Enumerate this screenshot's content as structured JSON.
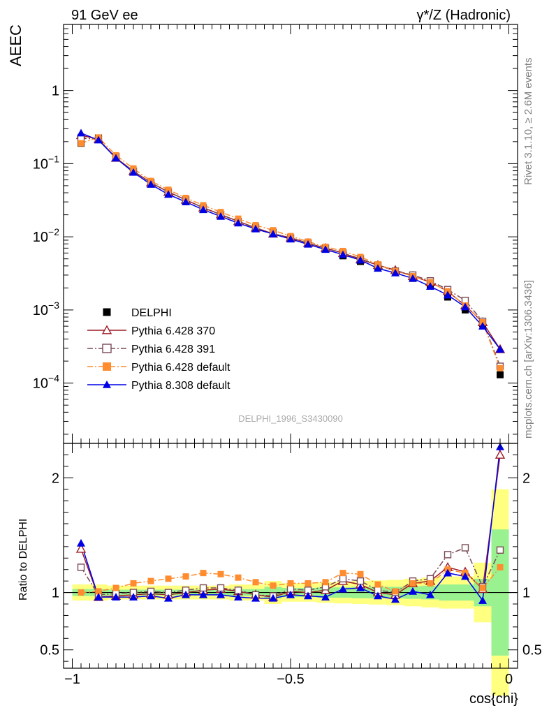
{
  "header": {
    "left_label": "91 GeV ee",
    "right_label": "γ*/Z (Hadronic)"
  },
  "side_labels": {
    "rivet": "Rivet 3.1.10, ≥ 2.6M events",
    "mcplots": "mcplots.cern.ch [arXiv:1306.3436]"
  },
  "watermark": "DELPHI_1996_S3430090",
  "chart_data": [
    {
      "type": "line",
      "panel": "main",
      "ylabel": "AEEC",
      "xlabel": "",
      "yscale": "log",
      "xlim": [
        -1.02,
        0.02
      ],
      "ylim": [
        1.5e-05,
        8
      ],
      "ytick_labels": [
        "1",
        "10^-1",
        "10^-2",
        "10^-3",
        "10^-4"
      ],
      "x": [
        -0.98,
        -0.94,
        -0.9,
        -0.86,
        -0.82,
        -0.78,
        -0.74,
        -0.7,
        -0.66,
        -0.62,
        -0.58,
        -0.54,
        -0.5,
        -0.46,
        -0.42,
        -0.38,
        -0.34,
        -0.3,
        -0.26,
        -0.22,
        -0.18,
        -0.14,
        -0.1,
        -0.06,
        -0.02
      ],
      "legend_position": "bottom-left",
      "series": [
        {
          "name": "DELPHI",
          "color": "#000000",
          "marker": "filled-square",
          "line": "none",
          "values": [
            0.19,
            0.225,
            0.125,
            0.079,
            0.054,
            0.04,
            0.031,
            0.024,
            0.0195,
            0.016,
            0.0135,
            0.0115,
            0.0095,
            0.0081,
            0.0068,
            0.0055,
            0.0046,
            0.0039,
            0.0034,
            0.0027,
            0.0022,
            0.0015,
            0.001,
            0.00065,
            0.00013
          ]
        },
        {
          "name": "Pythia 6.428 370",
          "color": "#9e1b26",
          "marker": "open-triangle",
          "line": "solid",
          "values": [
            0.245,
            0.215,
            0.12,
            0.079,
            0.055,
            0.041,
            0.032,
            0.025,
            0.0202,
            0.0163,
            0.0133,
            0.011,
            0.0097,
            0.0082,
            0.007,
            0.006,
            0.0049,
            0.0041,
            0.0035,
            0.0029,
            0.0024,
            0.0018,
            0.00115,
            0.00068,
            0.00029
          ]
        },
        {
          "name": "Pythia 6.428 391",
          "color": "#7a4a55",
          "marker": "open-square",
          "line": "dashdot",
          "values": [
            0.225,
            0.215,
            0.12,
            0.079,
            0.055,
            0.041,
            0.032,
            0.025,
            0.0201,
            0.0162,
            0.0132,
            0.011,
            0.0097,
            0.0082,
            0.007,
            0.006,
            0.005,
            0.0041,
            0.0034,
            0.003,
            0.0025,
            0.0019,
            0.00135,
            0.0007,
            0.00017
          ]
        },
        {
          "name": "Pythia 6.428 default",
          "color": "#ff8c2f",
          "marker": "filled-square",
          "line": "dashdot",
          "values": [
            0.19,
            0.228,
            0.13,
            0.086,
            0.058,
            0.044,
            0.034,
            0.027,
            0.0218,
            0.0177,
            0.0144,
            0.0123,
            0.0102,
            0.0086,
            0.0073,
            0.0064,
            0.0053,
            0.0042,
            0.0034,
            0.0029,
            0.0024,
            0.0018,
            0.00115,
            0.00068,
            0.00016
          ]
        },
        {
          "name": "Pythia 8.308 default",
          "color": "#0000e6",
          "marker": "filled-triangle",
          "line": "solid",
          "values": [
            0.262,
            0.21,
            0.119,
            0.076,
            0.052,
            0.038,
            0.03,
            0.0235,
            0.019,
            0.0154,
            0.0128,
            0.0109,
            0.0093,
            0.0079,
            0.0067,
            0.0057,
            0.0048,
            0.0037,
            0.0032,
            0.0027,
            0.0021,
            0.0016,
            0.0011,
            0.0006,
            0.00029
          ]
        }
      ]
    },
    {
      "type": "line",
      "panel": "ratio",
      "ylabel": "Ratio to DELPHI",
      "xlabel": "cos{chi}",
      "xlim": [
        -1.02,
        0.02
      ],
      "ylim": [
        0.34,
        2.3
      ],
      "yticks": [
        0.5,
        1,
        2
      ],
      "ytick_labels": [
        "0.5",
        "1",
        "2"
      ],
      "xticks": [
        -1,
        -0.5,
        0
      ],
      "xtick_labels": [
        "−1",
        "−0.5",
        "0"
      ],
      "x": [
        -0.98,
        -0.94,
        -0.9,
        -0.86,
        -0.82,
        -0.78,
        -0.74,
        -0.7,
        -0.66,
        -0.62,
        -0.58,
        -0.54,
        -0.5,
        -0.46,
        -0.42,
        -0.38,
        -0.34,
        -0.3,
        -0.26,
        -0.22,
        -0.18,
        -0.14,
        -0.1,
        -0.06,
        -0.02
      ],
      "bands": {
        "inner_color": "#99f28f",
        "outer_color": "#ffff80",
        "inner_halfwidth": [
          0.03,
          0.03,
          0.025,
          0.025,
          0.025,
          0.025,
          0.025,
          0.025,
          0.025,
          0.03,
          0.03,
          0.05,
          0.04,
          0.04,
          0.045,
          0.045,
          0.05,
          0.05,
          0.05,
          0.055,
          0.06,
          0.07,
          0.07,
          0.12,
          0.55
        ],
        "outer_halfwidth": [
          0.07,
          0.07,
          0.06,
          0.06,
          0.06,
          0.06,
          0.06,
          0.06,
          0.06,
          0.07,
          0.07,
          0.1,
          0.08,
          0.08,
          0.09,
          0.095,
          0.1,
          0.105,
          0.11,
          0.12,
          0.13,
          0.14,
          0.14,
          0.26,
          0.9
        ]
      },
      "series": [
        {
          "name": "Pythia 6.428 370",
          "color": "#9e1b26",
          "marker": "open-triangle",
          "line": "solid",
          "values": [
            1.38,
            0.96,
            0.97,
            0.98,
            0.99,
            0.98,
            1.0,
            1.02,
            1.03,
            1.01,
            0.98,
            0.96,
            1.01,
            1.0,
            1.02,
            1.1,
            1.07,
            1.0,
            0.98,
            1.08,
            1.1,
            1.22,
            1.18,
            1.03,
            2.2
          ]
        },
        {
          "name": "Pythia 6.428 391",
          "color": "#7a4a55",
          "marker": "open-square",
          "line": "dashdot",
          "values": [
            1.22,
            0.98,
            0.99,
            1.0,
            1.01,
            1.0,
            1.02,
            1.04,
            1.04,
            1.02,
            0.98,
            0.97,
            1.03,
            1.02,
            1.05,
            1.12,
            1.1,
            1.02,
            1.0,
            1.1,
            1.12,
            1.33,
            1.39,
            1.05,
            1.37
          ]
        },
        {
          "name": "Pythia 6.428 default",
          "color": "#ff8c2f",
          "marker": "filled-square",
          "line": "dashdot",
          "values": [
            1.0,
            1.01,
            1.04,
            1.08,
            1.1,
            1.12,
            1.14,
            1.17,
            1.16,
            1.13,
            1.09,
            1.06,
            1.08,
            1.08,
            1.09,
            1.17,
            1.16,
            1.07,
            1.01,
            1.08,
            1.08,
            1.2,
            1.17,
            1.04,
            1.22
          ]
        },
        {
          "name": "Pythia 8.308 default",
          "color": "#0000e6",
          "marker": "filled-triangle",
          "line": "solid",
          "values": [
            1.43,
            0.96,
            0.96,
            0.96,
            0.97,
            0.95,
            0.98,
            0.98,
            0.98,
            0.96,
            0.95,
            0.95,
            0.98,
            0.97,
            0.96,
            1.03,
            1.04,
            0.97,
            0.94,
            1.01,
            0.98,
            1.17,
            1.14,
            0.93,
            2.27
          ]
        }
      ]
    }
  ]
}
